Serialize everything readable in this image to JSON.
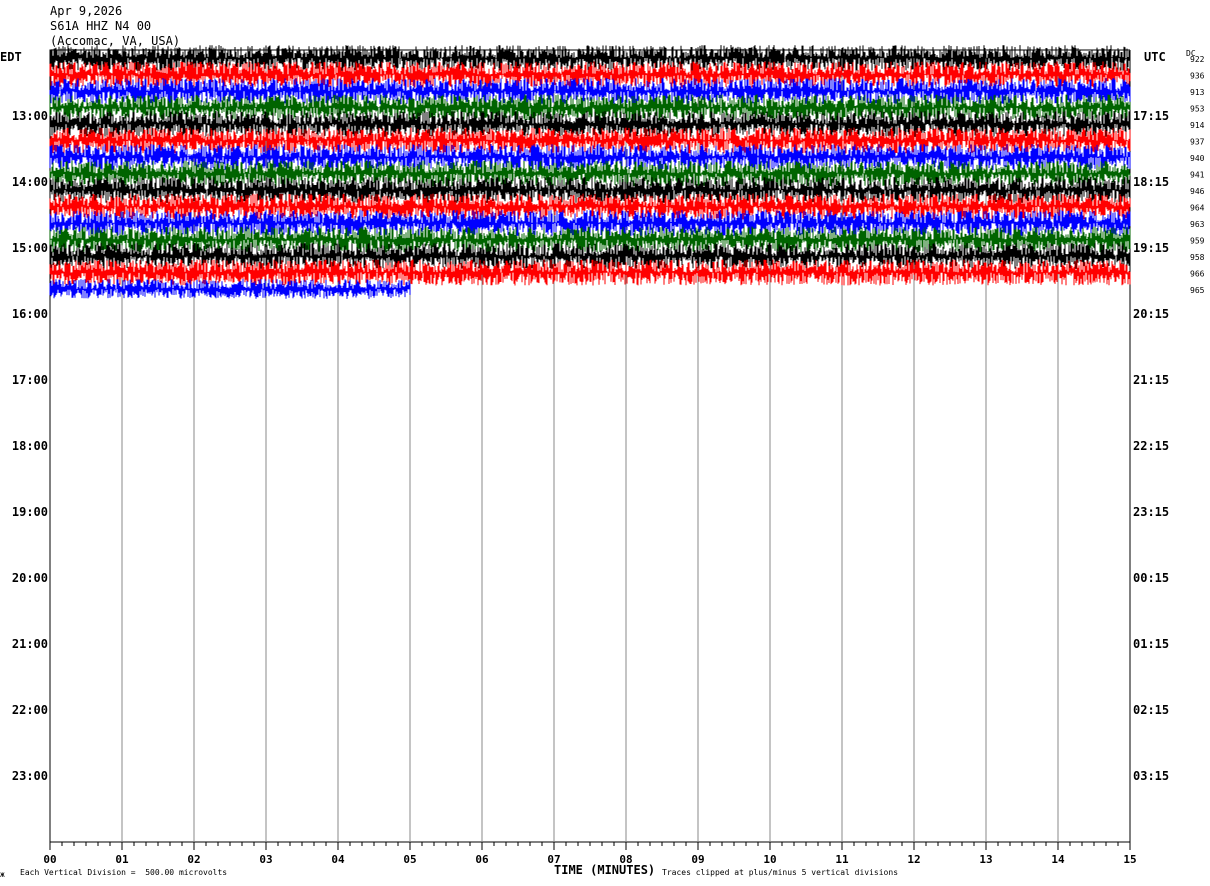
{
  "header": {
    "date": "Apr 9,2026",
    "channel": "S61A HHZ N4 00",
    "location": "(Accomac, VA, USA)"
  },
  "left_tz": "EDT",
  "right_tz": "UTC",
  "dc_label": "DC",
  "footer": {
    "scale": "Each Vertical Division =  500.00 microvolts",
    "clip": "Traces clipped at plus/minus 5 vertical divisions",
    "corner_mark": "ж"
  },
  "chart_data": {
    "type": "line",
    "subtype": "helicorder",
    "xlabel": "TIME (MINUTES)",
    "x_ticks": [
      "00",
      "01",
      "02",
      "03",
      "04",
      "05",
      "06",
      "07",
      "08",
      "09",
      "10",
      "11",
      "12",
      "13",
      "14",
      "15"
    ],
    "xlim": [
      0,
      15
    ],
    "left_hour_labels": [
      "13:00",
      "14:00",
      "15:00",
      "16:00",
      "17:00",
      "18:00",
      "19:00",
      "20:00",
      "21:00",
      "22:00",
      "23:00"
    ],
    "right_hour_labels": [
      "17:15",
      "18:15",
      "19:15",
      "20:15",
      "21:15",
      "22:15",
      "23:15",
      "00:15",
      "01:15",
      "02:15",
      "03:15"
    ],
    "first_labeled_row": 4,
    "row_colors": [
      "#000000",
      "#ff0000",
      "#0000ff",
      "#006400"
    ],
    "trace_offsets": [
      "922",
      "936",
      "913",
      "953",
      "914",
      "937",
      "940",
      "941",
      "946",
      "964",
      "963",
      "959",
      "958",
      "966",
      "965"
    ],
    "traces_with_data": 15,
    "last_trace_end_minute": 5.0,
    "grid": true
  }
}
